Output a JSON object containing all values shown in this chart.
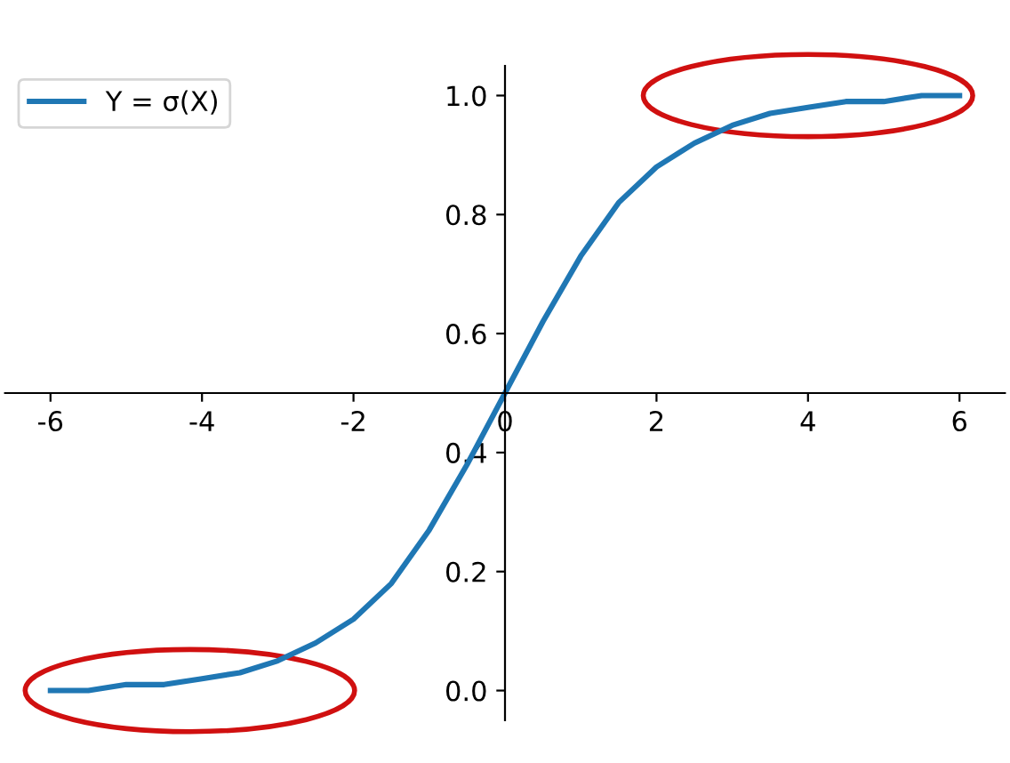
{
  "chart_data": {
    "type": "line",
    "x": [
      -6,
      -5.5,
      -5,
      -4.5,
      -4,
      -3.5,
      -3,
      -2.5,
      -2,
      -1.5,
      -1,
      -0.5,
      0,
      0.5,
      1,
      1.5,
      2,
      2.5,
      3,
      3.5,
      4,
      4.5,
      5,
      5.5,
      6
    ],
    "series": [
      {
        "name": "Y = σ(X)",
        "color": "#1f77b4",
        "values": [
          0.0,
          0.0,
          0.01,
          0.01,
          0.02,
          0.03,
          0.05,
          0.08,
          0.12,
          0.18,
          0.27,
          0.38,
          0.5,
          0.62,
          0.73,
          0.82,
          0.88,
          0.92,
          0.95,
          0.97,
          0.98,
          0.99,
          0.99,
          1.0,
          1.0
        ]
      }
    ],
    "xlim": [
      -6.6,
      6.6
    ],
    "ylim": [
      -0.05,
      1.05
    ],
    "xticks": [
      -6,
      -4,
      -2,
      0,
      2,
      4,
      6
    ],
    "yticks": [
      {
        "value": 0,
        "label": "0.0"
      },
      0.2,
      0.4,
      0.6,
      0.8,
      {
        "value": 1,
        "label": "1.0"
      }
    ],
    "grid": false,
    "legend": "top left",
    "line_style": "solid",
    "marker": "none"
  }
}
